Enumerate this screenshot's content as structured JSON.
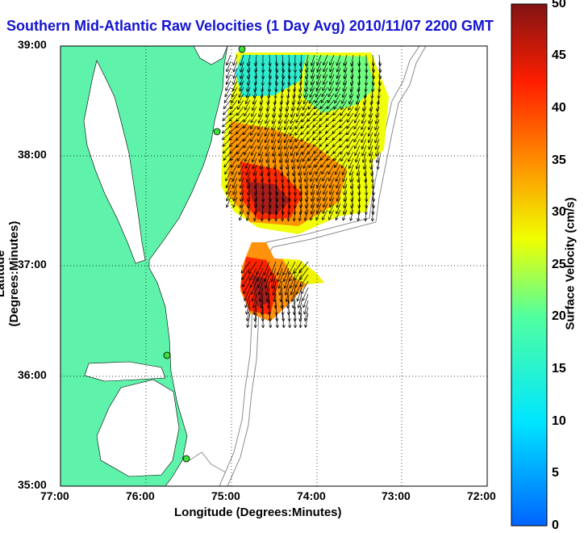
{
  "title": "Southern Mid-Atlantic Raw Velocities (1 Day Avg) 2010/11/07 2200 GMT",
  "map": {
    "xlabel": "Longitude (Degrees:Minutes)",
    "ylabel": "Latitude (Degrees:Minutes)",
    "x_ticks": [
      "77:00",
      "76:00",
      "75:00",
      "74:00",
      "73:00",
      "72:00"
    ],
    "y_ticks": [
      "39:00",
      "38:00",
      "37:00",
      "36:00",
      "35:00"
    ],
    "colors": {
      "land": "#5ef2aa",
      "coast": "#000000",
      "bathy": "#8c8c8c",
      "station": "#3be03b",
      "title": "#1414d2"
    }
  },
  "colorbar": {
    "label": "Surface Velocity (cm/s)",
    "ticks": [
      "0",
      "5",
      "10",
      "15",
      "20",
      "25",
      "30",
      "35",
      "40",
      "45",
      "50"
    ],
    "min": 0,
    "max": 50
  }
}
